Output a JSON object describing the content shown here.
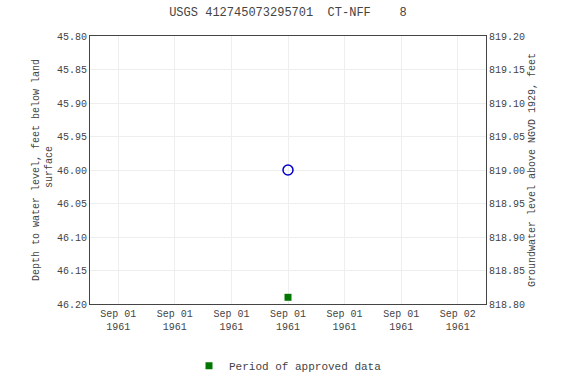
{
  "chart_data": {
    "type": "scatter",
    "title": "USGS 412745073295701  CT-NFF    8",
    "ylabel": "Depth to water level, feet below land\n surface",
    "y2label": "Groundwater level above NGVD 1929, feet",
    "categories": [
      "Sep 01\n1961",
      "Sep 01\n1961",
      "Sep 01\n1961",
      "Sep 01\n1961",
      "Sep 01\n1961",
      "Sep 01\n1961",
      "Sep 02\n1961"
    ],
    "series": [
      {
        "color": "#0000cc",
        "marker": "open circle",
        "values": [
          null,
          null,
          null,
          46.0,
          null,
          null,
          null
        ]
      },
      {
        "name": "Period of approved data",
        "color": "#007700",
        "marker": "square",
        "values": [
          null,
          null,
          null,
          46.19,
          null,
          null,
          null
        ]
      }
    ],
    "ylim": [
      46.2,
      45.8
    ],
    "yticks": [
      {
        "value": 45.8,
        "label": "45.80"
      },
      45.85,
      {
        "value": 45.9,
        "label": "45.90"
      },
      45.95,
      {
        "value": 46.0,
        "label": "46.00"
      },
      46.05,
      {
        "value": 46.1,
        "label": "46.10"
      },
      46.15,
      {
        "value": 46.2,
        "label": "46.20"
      }
    ],
    "y2lim": [
      818.8,
      819.2
    ],
    "y2ticks": [
      {
        "value": 818.8,
        "label": "818.80"
      },
      818.85,
      {
        "value": 818.9,
        "label": "818.90"
      },
      818.95,
      {
        "value": 819.0,
        "label": "819.00"
      },
      819.05,
      {
        "value": 819.1,
        "label": "819.10"
      },
      819.15,
      {
        "value": 819.2,
        "label": "819.20"
      }
    ],
    "grid": true,
    "legend": "lower center"
  }
}
